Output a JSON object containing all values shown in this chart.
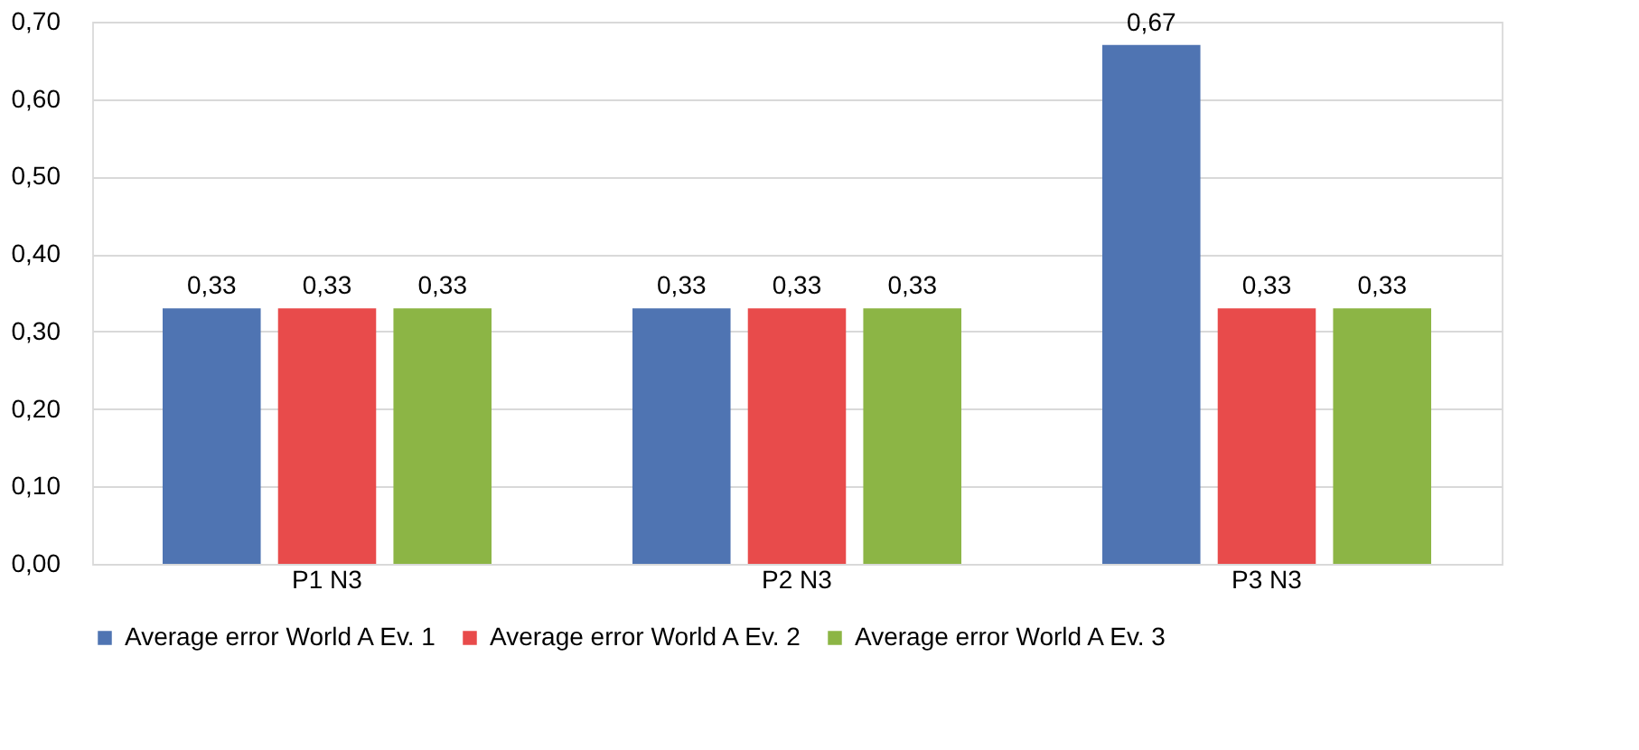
{
  "chart_data": {
    "type": "bar",
    "categories": [
      "P1 N3",
      "P2 N3",
      "P3 N3"
    ],
    "series": [
      {
        "name": "Average error World A Ev. 1",
        "color": "#4f74b2",
        "values": [
          0.33,
          0.33,
          0.67
        ],
        "value_labels": [
          "0,33",
          "0,33",
          "0,67"
        ]
      },
      {
        "name": "Average error World A Ev. 2",
        "color": "#e84b4b",
        "values": [
          0.33,
          0.33,
          0.33
        ],
        "value_labels": [
          "0,33",
          "0,33",
          "0,33"
        ]
      },
      {
        "name": "Average error World A Ev. 3",
        "color": "#8cb545",
        "values": [
          0.33,
          0.33,
          0.33
        ],
        "value_labels": [
          "0,33",
          "0,33",
          "0,33"
        ]
      }
    ],
    "ylim": [
      0,
      0.7
    ],
    "yticks": [
      {
        "value": 0,
        "label": "0,00"
      },
      {
        "value": 0.1,
        "label": "0,10"
      },
      {
        "value": 0.2,
        "label": "0,20"
      },
      {
        "value": 0.3,
        "label": "0,30"
      },
      {
        "value": 0.4,
        "label": "0,40"
      },
      {
        "value": 0.5,
        "label": "0,50"
      },
      {
        "value": 0.6,
        "label": "0,60"
      },
      {
        "value": 0.7,
        "label": "0,70"
      }
    ],
    "grid": "y",
    "legend": "bottom"
  }
}
